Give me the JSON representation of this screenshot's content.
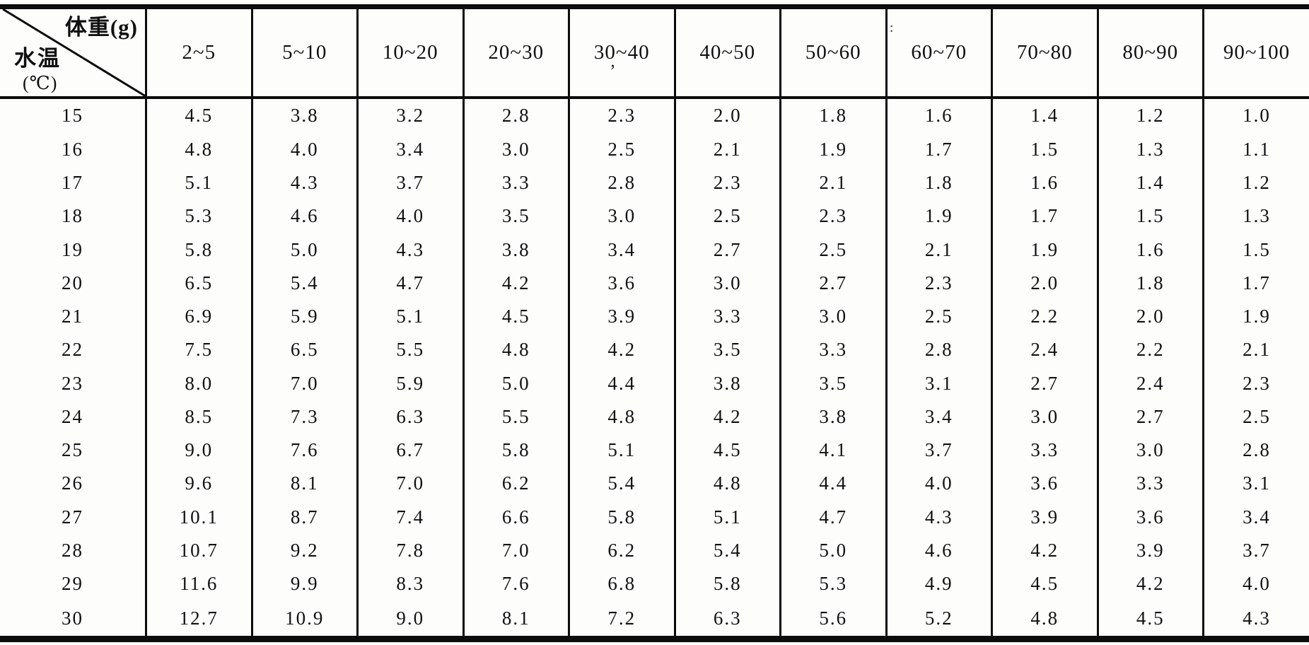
{
  "colors": {
    "ink": "#0c0c0c",
    "paper": "#fdfdfc"
  },
  "chart_data": {
    "type": "table",
    "corner": {
      "col_axis_label": "体重(g)",
      "row_axis_label": "水温",
      "row_axis_unit": "(℃)"
    },
    "columns": [
      "2~5",
      "5~10",
      "10~20",
      "20~30",
      "30~40",
      "40~50",
      "50~60",
      "60~70",
      "70~80",
      "80~90",
      "90~100"
    ],
    "row_labels": [
      "15",
      "16",
      "17",
      "18",
      "19",
      "20",
      "21",
      "22",
      "23",
      "24",
      "25",
      "26",
      "27",
      "28",
      "29",
      "30"
    ],
    "cells": [
      [
        "4.5",
        "3.8",
        "3.2",
        "2.8",
        "2.3",
        "2.0",
        "1.8",
        "1.6",
        "1.4",
        "1.2",
        "1.0"
      ],
      [
        "4.8",
        "4.0",
        "3.4",
        "3.0",
        "2.5",
        "2.1",
        "1.9",
        "1.7",
        "1.5",
        "1.3",
        "1.1"
      ],
      [
        "5.1",
        "4.3",
        "3.7",
        "3.3",
        "2.8",
        "2.3",
        "2.1",
        "1.8",
        "1.6",
        "1.4",
        "1.2"
      ],
      [
        "5.3",
        "4.6",
        "4.0",
        "3.5",
        "3.0",
        "2.5",
        "2.3",
        "1.9",
        "1.7",
        "1.5",
        "1.3"
      ],
      [
        "5.8",
        "5.0",
        "4.3",
        "3.8",
        "3.4",
        "2.7",
        "2.5",
        "2.1",
        "1.9",
        "1.6",
        "1.5"
      ],
      [
        "6.5",
        "5.4",
        "4.7",
        "4.2",
        "3.6",
        "3.0",
        "2.7",
        "2.3",
        "2.0",
        "1.8",
        "1.7"
      ],
      [
        "6.9",
        "5.9",
        "5.1",
        "4.5",
        "3.9",
        "3.3",
        "3.0",
        "2.5",
        "2.2",
        "2.0",
        "1.9"
      ],
      [
        "7.5",
        "6.5",
        "5.5",
        "4.8",
        "4.2",
        "3.5",
        "3.3",
        "2.8",
        "2.4",
        "2.2",
        "2.1"
      ],
      [
        "8.0",
        "7.0",
        "5.9",
        "5.0",
        "4.4",
        "3.8",
        "3.5",
        "3.1",
        "2.7",
        "2.4",
        "2.3"
      ],
      [
        "8.5",
        "7.3",
        "6.3",
        "5.5",
        "4.8",
        "4.2",
        "3.8",
        "3.4",
        "3.0",
        "2.7",
        "2.5"
      ],
      [
        "9.0",
        "7.6",
        "6.7",
        "5.8",
        "5.1",
        "4.5",
        "4.1",
        "3.7",
        "3.3",
        "3.0",
        "2.8"
      ],
      [
        "9.6",
        "8.1",
        "7.0",
        "6.2",
        "5.4",
        "4.8",
        "4.4",
        "4.0",
        "3.6",
        "3.3",
        "3.1"
      ],
      [
        "10.1",
        "8.7",
        "7.4",
        "6.6",
        "5.8",
        "5.1",
        "4.7",
        "4.3",
        "3.9",
        "3.6",
        "3.4"
      ],
      [
        "10.7",
        "9.2",
        "7.8",
        "7.0",
        "6.2",
        "5.4",
        "5.0",
        "4.6",
        "4.2",
        "3.9",
        "3.7"
      ],
      [
        "11.6",
        "9.9",
        "8.3",
        "7.6",
        "6.8",
        "5.8",
        "5.3",
        "4.9",
        "4.5",
        "4.2",
        "4.0"
      ],
      [
        "12.7",
        "10.9",
        "9.0",
        "8.1",
        "7.2",
        "6.3",
        "5.6",
        "5.2",
        "4.8",
        "4.5",
        "4.3"
      ]
    ]
  },
  "artifacts": {
    "mark_under_30_40": "ʼ",
    "dots_above_60_70": ":"
  }
}
